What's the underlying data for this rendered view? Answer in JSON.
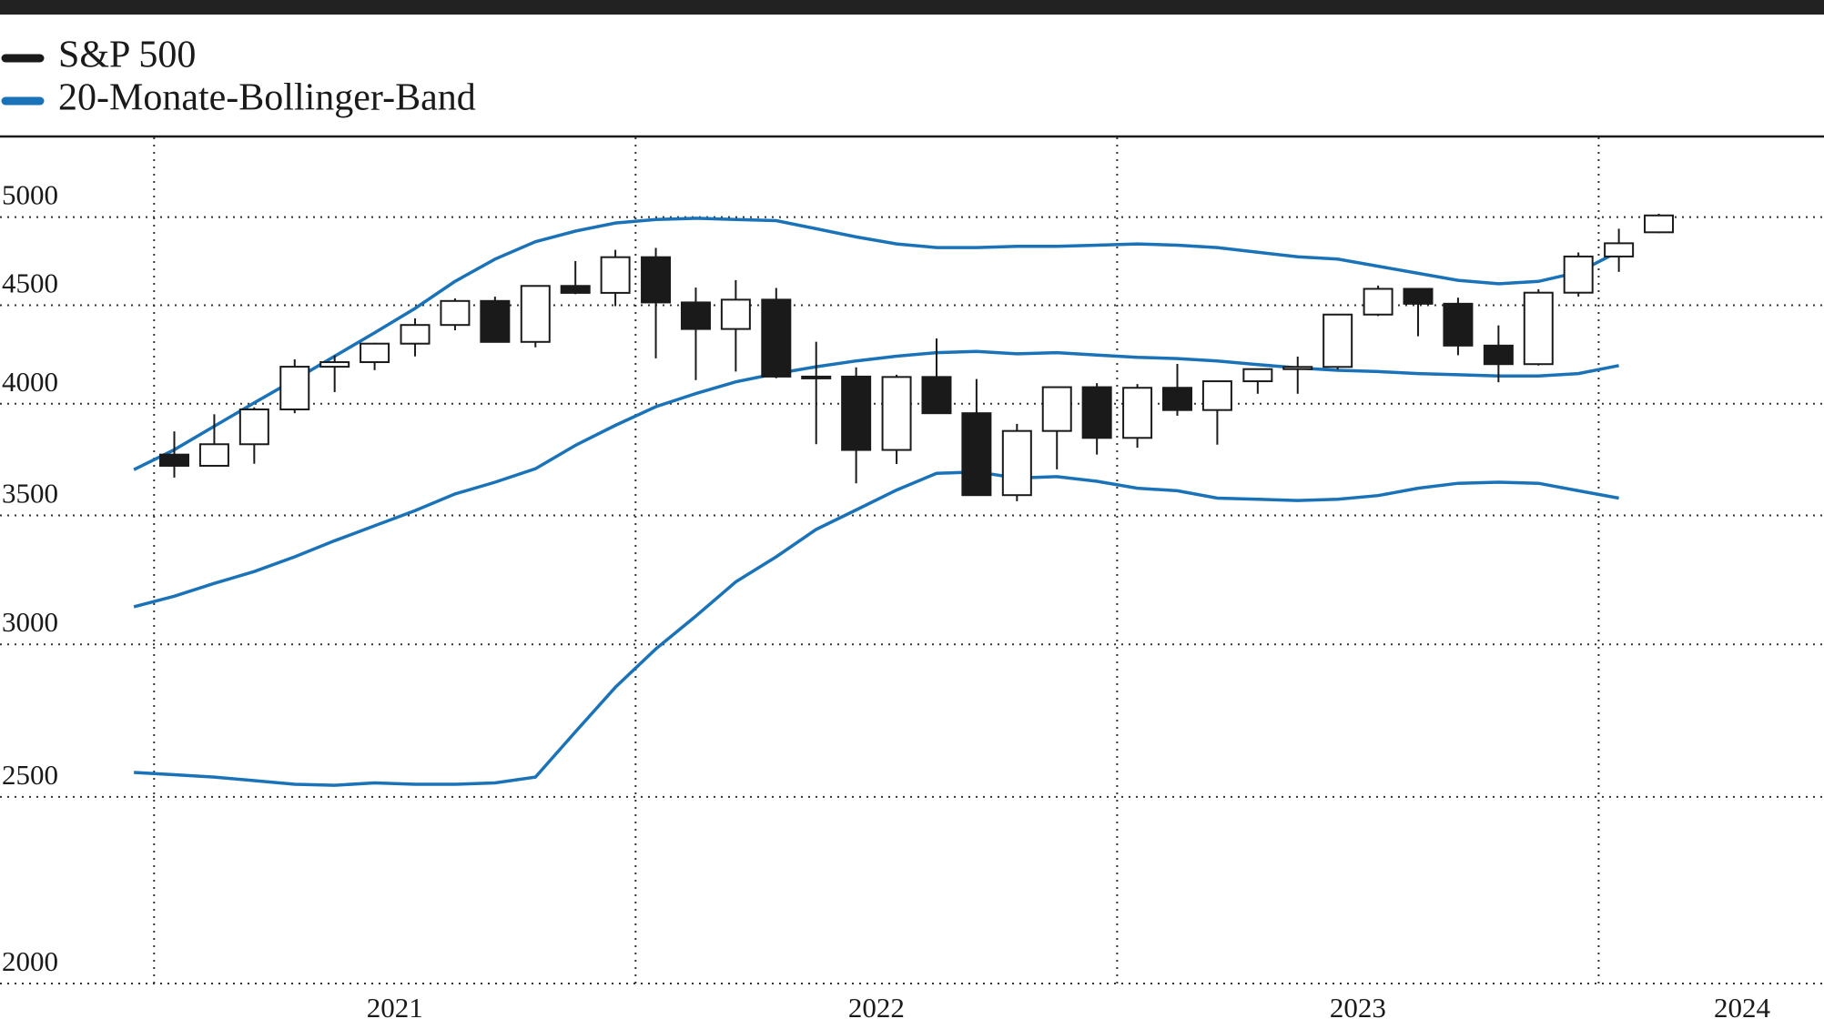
{
  "chart_data": {
    "type": "candlestick",
    "legend": "top-left",
    "log_scale": true,
    "grid": true,
    "xlim": [
      2020.68,
      2024.468
    ],
    "xticks": [
      2021,
      2022,
      2023,
      2024
    ],
    "ylim": [
      2000,
      5500
    ],
    "yticks": [
      2000,
      2500,
      3000,
      3500,
      4000,
      4500,
      5000
    ],
    "series": [
      {
        "name": "S&P 500",
        "color": "#1a1a1a",
        "x": [
          2021.042,
          2021.125,
          2021.208,
          2021.292,
          2021.375,
          2021.458,
          2021.542,
          2021.625,
          2021.708,
          2021.792,
          2021.875,
          2021.958,
          2022.042,
          2022.125,
          2022.208,
          2022.292,
          2022.375,
          2022.458,
          2022.542,
          2022.625,
          2022.708,
          2022.792,
          2022.875,
          2022.958,
          2023.042,
          2023.125,
          2023.208,
          2023.292,
          2023.375,
          2023.458,
          2023.542,
          2023.625,
          2023.708,
          2023.792,
          2023.875,
          2023.958,
          2024.042,
          2024.125
        ],
        "open": [
          3764,
          3714,
          3811,
          3973,
          4181,
          4204,
          4298,
          4395,
          4523,
          4307,
          4605,
          4567,
          4766,
          4515,
          4374,
          4530,
          4132,
          4132,
          3785,
          4130,
          3955,
          3586,
          3872,
          4080,
          3840,
          4077,
          3970,
          4109,
          4169,
          4180,
          4450,
          4589,
          4508,
          4288,
          4194,
          4568,
          4770,
          4910
        ],
        "high": [
          3870,
          3950,
          3983,
          4218,
          4238,
          4302,
          4430,
          4537,
          4546,
          4608,
          4744,
          4808,
          4819,
          4596,
          4637,
          4594,
          4308,
          4178,
          4141,
          4325,
          4120,
          3905,
          4080,
          4100,
          4095,
          4195,
          4110,
          4170,
          4232,
          4449,
          4607,
          4584,
          4541,
          4393,
          4587,
          4793,
          4931,
          5020
        ],
        "low": [
          3662,
          3725,
          3723,
          3955,
          4056,
          4164,
          4233,
          4367,
          4306,
          4279,
          4560,
          4495,
          4223,
          4115,
          4157,
          4124,
          3811,
          3637,
          3722,
          3955,
          3584,
          3560,
          3698,
          3764,
          3795,
          3943,
          3809,
          4048,
          4048,
          4167,
          4442,
          4336,
          4239,
          4104,
          4187,
          4547,
          4683,
          4905
        ],
        "close": [
          3714,
          3811,
          3973,
          4181,
          4204,
          4298,
          4395,
          4523,
          4307,
          4605,
          4567,
          4766,
          4515,
          4374,
          4530,
          4132,
          4132,
          3785,
          4130,
          3955,
          3586,
          3872,
          4080,
          3840,
          4077,
          3970,
          4109,
          4169,
          4180,
          4450,
          4589,
          4508,
          4288,
          4194,
          4568,
          4770,
          4846,
          5010
        ]
      },
      {
        "name": "20-Monate-Bollinger-Band",
        "color": "#1a73b8",
        "x": [
          2020.958,
          2021.042,
          2021.125,
          2021.208,
          2021.292,
          2021.375,
          2021.458,
          2021.542,
          2021.625,
          2021.708,
          2021.792,
          2021.875,
          2021.958,
          2022.042,
          2022.125,
          2022.208,
          2022.292,
          2022.375,
          2022.458,
          2022.542,
          2022.625,
          2022.708,
          2022.792,
          2022.875,
          2022.958,
          2023.042,
          2023.125,
          2023.208,
          2023.292,
          2023.375,
          2023.458,
          2023.542,
          2023.625,
          2023.708,
          2023.792,
          2023.875,
          2023.958,
          2024.042
        ],
        "upper": [
          3697,
          3786,
          3894,
          4004,
          4117,
          4234,
          4354,
          4483,
          4630,
          4755,
          4855,
          4917,
          4965,
          4986,
          4993,
          4986,
          4979,
          4931,
          4883,
          4842,
          4821,
          4821,
          4828,
          4828,
          4835,
          4842,
          4835,
          4821,
          4794,
          4768,
          4755,
          4715,
          4675,
          4636,
          4617,
          4630,
          4681,
          4800
        ],
        "middle": [
          3138,
          3178,
          3227,
          3273,
          3331,
          3396,
          3457,
          3520,
          3591,
          3642,
          3701,
          3806,
          3898,
          3986,
          4049,
          4106,
          4147,
          4181,
          4210,
          4234,
          4252,
          4258,
          4246,
          4252,
          4240,
          4228,
          4222,
          4210,
          4192,
          4175,
          4163,
          4157,
          4147,
          4141,
          4135,
          4135,
          4147,
          4187
        ],
        "lower": [
          2574,
          2567,
          2560,
          2549,
          2538,
          2535,
          2542,
          2538,
          2538,
          2542,
          2560,
          2702,
          2850,
          2984,
          3103,
          3233,
          3331,
          3442,
          3523,
          3608,
          3681,
          3687,
          3660,
          3666,
          3646,
          3616,
          3605,
          3573,
          3568,
          3563,
          3568,
          3584,
          3616,
          3637,
          3642,
          3637,
          3605,
          3573
        ]
      }
    ]
  }
}
